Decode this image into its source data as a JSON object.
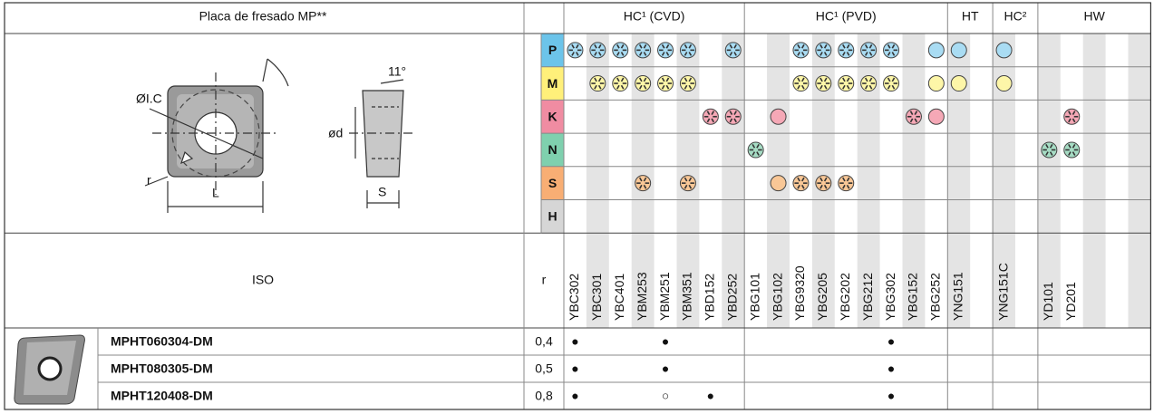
{
  "header": {
    "title": "Placa de fresado MP**",
    "groups": [
      "HC¹ (CVD)",
      "HC¹ (PVD)",
      "HT",
      "HC²",
      "HW"
    ]
  },
  "diagram": {
    "labels": [
      "ØI.C",
      "r",
      "L",
      "11°",
      "ød",
      "S"
    ]
  },
  "materials": [
    "P",
    "M",
    "K",
    "N",
    "S",
    "H"
  ],
  "iso": {
    "label": "ISO",
    "r_label": "r"
  },
  "grades": [
    "YBC302",
    "YBC301",
    "YBC401",
    "YBM253",
    "YBM251",
    "YBM351",
    "YBD152",
    "YBD252",
    "YBG101",
    "YBG102",
    "YBG9320",
    "YBG205",
    "YBG202",
    "YBG212",
    "YBG302",
    "YBG152",
    "YBG252",
    "YNG151",
    null,
    "YNG151C",
    null,
    "YD101",
    "YD201",
    null,
    null,
    null
  ],
  "rows": [
    {
      "code": "MPHT060304-DM",
      "r": "0,4",
      "marks": [
        "●",
        null,
        null,
        null,
        "●",
        null,
        null,
        null,
        null,
        null,
        null,
        null,
        null,
        null,
        "●",
        null,
        null,
        null,
        null,
        null,
        null,
        null,
        null,
        null,
        null,
        null
      ]
    },
    {
      "code": "MPHT080305-DM",
      "r": "0,5",
      "marks": [
        "●",
        null,
        null,
        null,
        "●",
        null,
        null,
        null,
        null,
        null,
        null,
        null,
        null,
        null,
        "●",
        null,
        null,
        null,
        null,
        null,
        null,
        null,
        null,
        null,
        null,
        null
      ]
    },
    {
      "code": "MPHT120408-DM",
      "r": "0,8",
      "marks": [
        "●",
        null,
        null,
        null,
        "○",
        null,
        "●",
        null,
        null,
        null,
        null,
        null,
        null,
        null,
        "●",
        null,
        null,
        null,
        null,
        null,
        null,
        null,
        null,
        null,
        null,
        null
      ]
    }
  ]
}
